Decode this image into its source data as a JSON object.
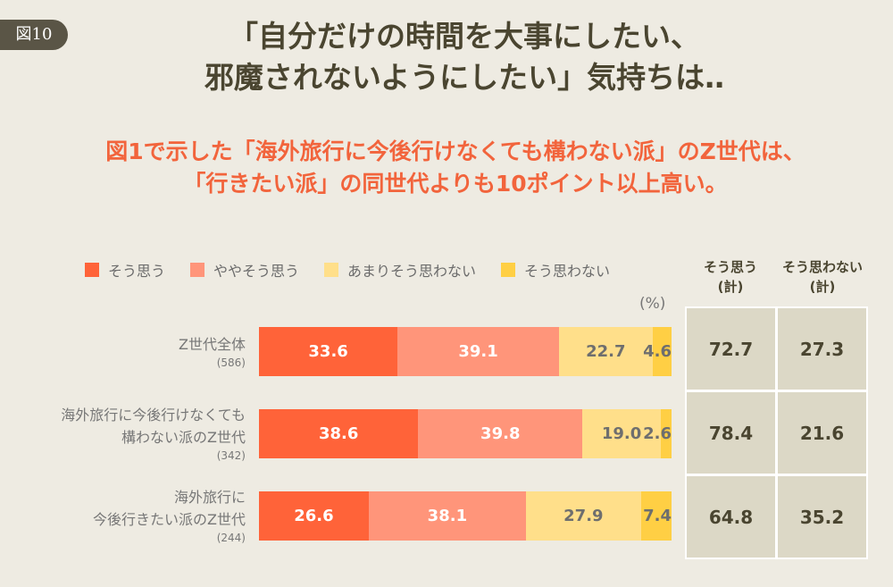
{
  "badge": "図10",
  "title": [
    "「自分だけの時間を大事にしたい、",
    "邪魔されないようにしたい」気持ちは‥"
  ],
  "subtitle": [
    "図1で示した「海外旅行に今後行けなくても構わない派」のZ世代は、",
    "「行きたい派」の同世代よりも10ポイント以上高い。"
  ],
  "unit": "(%)",
  "table": {
    "headers": [
      [
        "そう思う",
        "(計)"
      ],
      [
        "そう思わない",
        "(計)"
      ]
    ],
    "rows": [
      [
        "72.7",
        "27.3"
      ],
      [
        "78.4",
        "21.6"
      ],
      [
        "64.8",
        "35.2"
      ]
    ]
  },
  "chart_data": {
    "type": "bar",
    "stacked": true,
    "orientation": "horizontal",
    "title": "",
    "xlabel": "",
    "ylabel": "",
    "xlim": [
      0,
      100
    ],
    "legend_position": "top",
    "categories": [
      {
        "lines": [
          "Z世代全体"
        ],
        "n": "(586)"
      },
      {
        "lines": [
          "海外旅行に今後行けなくても",
          "構わない派のZ世代"
        ],
        "n": "(342)"
      },
      {
        "lines": [
          "海外旅行に",
          "今後行きたい派のZ世代"
        ],
        "n": "(244)"
      }
    ],
    "series": [
      {
        "name": "そう思う",
        "color": "#ff6339",
        "label_color": "#ffffff",
        "values": [
          33.6,
          38.6,
          26.6
        ]
      },
      {
        "name": "ややそう思う",
        "color": "#ff957a",
        "label_color": "#ffffff",
        "values": [
          39.1,
          39.8,
          38.1
        ]
      },
      {
        "name": "あまりそう思わない",
        "color": "#ffdf8a",
        "label_color": "#6e6e6e",
        "values": [
          22.7,
          19.0,
          27.9
        ]
      },
      {
        "name": "そう思わない",
        "color": "#ffcf44",
        "label_color": "#6e6e6e",
        "values": [
          4.6,
          2.6,
          7.4
        ]
      }
    ]
  }
}
